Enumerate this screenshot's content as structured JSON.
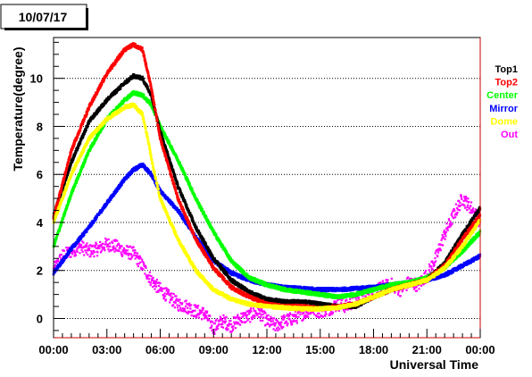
{
  "chart_data": {
    "type": "scatter",
    "title": "10/07/17",
    "xlabel": "Universal Time",
    "ylabel": "Temperature(degree)",
    "xlim": [
      0,
      24
    ],
    "ylim": [
      -0.8,
      11.7
    ],
    "x_ticks": [
      0,
      3,
      6,
      9,
      12,
      15,
      18,
      21,
      24
    ],
    "x_tick_labels": [
      "00:00",
      "03:00",
      "06:00",
      "09:00",
      "12:00",
      "15:00",
      "18:00",
      "21:00",
      "00:00"
    ],
    "y_ticks": [
      0,
      2,
      4,
      6,
      8,
      10
    ],
    "y_tick_labels": [
      "0",
      "2",
      "4",
      "6",
      "8",
      "10"
    ],
    "grid": "horizontal-dotted",
    "legend_position": "right",
    "series": [
      {
        "name": "Top1",
        "color": "#000000",
        "x": [
          0,
          1,
          2,
          3,
          4,
          4.5,
          5,
          5.5,
          6,
          7,
          8,
          9,
          10,
          11,
          12,
          13,
          14,
          15,
          16,
          17,
          18,
          19,
          20,
          21,
          22,
          23,
          24
        ],
        "y": [
          4.3,
          6.5,
          8.2,
          9.1,
          9.8,
          10.1,
          10.0,
          9.3,
          7.8,
          5.5,
          3.8,
          2.5,
          1.6,
          1.1,
          0.8,
          0.7,
          0.7,
          0.6,
          0.5,
          0.5,
          0.9,
          1.2,
          1.4,
          1.6,
          2.3,
          3.5,
          4.6
        ]
      },
      {
        "name": "Top2",
        "color": "#ff0000",
        "x": [
          0,
          1,
          2,
          3,
          4,
          4.5,
          5,
          5.5,
          6,
          7,
          8,
          9,
          10,
          11,
          12,
          13,
          14,
          15,
          16,
          17,
          18,
          19,
          20,
          21,
          22,
          23,
          24
        ],
        "y": [
          4.2,
          7.0,
          8.8,
          10.2,
          11.2,
          11.4,
          11.2,
          9.6,
          7.5,
          5.0,
          3.3,
          2.1,
          1.3,
          0.9,
          0.6,
          0.5,
          0.5,
          0.4,
          0.5,
          0.6,
          0.9,
          1.2,
          1.4,
          1.6,
          2.2,
          3.3,
          4.3
        ]
      },
      {
        "name": "Center",
        "color": "#00ff00",
        "x": [
          0,
          1,
          2,
          3,
          4,
          4.5,
          5,
          5.5,
          6,
          7,
          8,
          9,
          10,
          11,
          12,
          13,
          14,
          15,
          16,
          17,
          18,
          19,
          20,
          21,
          22,
          23,
          24
        ],
        "y": [
          3.0,
          5.2,
          7.0,
          8.3,
          9.1,
          9.4,
          9.3,
          8.9,
          8.0,
          6.6,
          5.0,
          3.6,
          2.4,
          1.7,
          1.4,
          1.2,
          1.1,
          1.0,
          0.9,
          1.0,
          1.2,
          1.4,
          1.5,
          1.7,
          2.1,
          2.8,
          3.6
        ]
      },
      {
        "name": "Mirror",
        "color": "#0000ff",
        "x": [
          0,
          1,
          2,
          3,
          4,
          4.5,
          5,
          5.5,
          6,
          7,
          8,
          9,
          10,
          11,
          12,
          13,
          14,
          15,
          16,
          17,
          18,
          19,
          20,
          21,
          22,
          23,
          24
        ],
        "y": [
          1.9,
          2.9,
          3.8,
          4.8,
          5.8,
          6.2,
          6.4,
          6.0,
          5.3,
          4.5,
          3.4,
          2.4,
          1.9,
          1.6,
          1.4,
          1.3,
          1.25,
          1.2,
          1.2,
          1.25,
          1.3,
          1.4,
          1.5,
          1.6,
          1.8,
          2.2,
          2.6
        ]
      },
      {
        "name": "Dome",
        "color": "#ffff00",
        "x": [
          0,
          1,
          2,
          3,
          4,
          4.5,
          5,
          5.3,
          5.6,
          6,
          7,
          8,
          9,
          10,
          11,
          12,
          13,
          14,
          15,
          16,
          17,
          18,
          19,
          20,
          21,
          22,
          23,
          24
        ],
        "y": [
          4.0,
          6.0,
          7.5,
          8.3,
          8.8,
          8.9,
          8.5,
          7.5,
          6.3,
          5.0,
          3.3,
          2.0,
          1.2,
          0.8,
          0.6,
          0.5,
          0.45,
          0.4,
          0.4,
          0.45,
          0.6,
          0.9,
          1.2,
          1.4,
          1.6,
          2.1,
          3.0,
          4.1
        ]
      },
      {
        "name": "Out",
        "color": "#ff00ff",
        "x": [
          0,
          0.5,
          1,
          1.5,
          2,
          2.5,
          3,
          3.5,
          4,
          4.5,
          5,
          5.5,
          6,
          6.5,
          7,
          7.5,
          8,
          8.5,
          9,
          9.5,
          10,
          10.5,
          11,
          11.5,
          12,
          12.5,
          13,
          13.5,
          14,
          14.5,
          15,
          15.5,
          16,
          16.5,
          17,
          17.5,
          18,
          18.5,
          19,
          19.5,
          20,
          20.5,
          21,
          21.5,
          22,
          22.5,
          23,
          23.5,
          24
        ],
        "y": [
          2.0,
          2.6,
          2.8,
          3.0,
          2.8,
          2.9,
          3.1,
          3.0,
          2.8,
          2.7,
          2.2,
          1.6,
          1.2,
          0.9,
          0.6,
          0.5,
          0.3,
          0.2,
          -0.4,
          -0.1,
          -0.3,
          0.0,
          0.1,
          0.3,
          -0.1,
          -0.3,
          -0.1,
          0.0,
          0.2,
          0.4,
          0.3,
          0.4,
          0.6,
          0.5,
          0.8,
          0.9,
          1.1,
          1.3,
          1.4,
          1.2,
          1.5,
          1.4,
          1.8,
          2.5,
          3.5,
          4.3,
          5.0,
          4.6,
          4.0
        ]
      }
    ]
  }
}
